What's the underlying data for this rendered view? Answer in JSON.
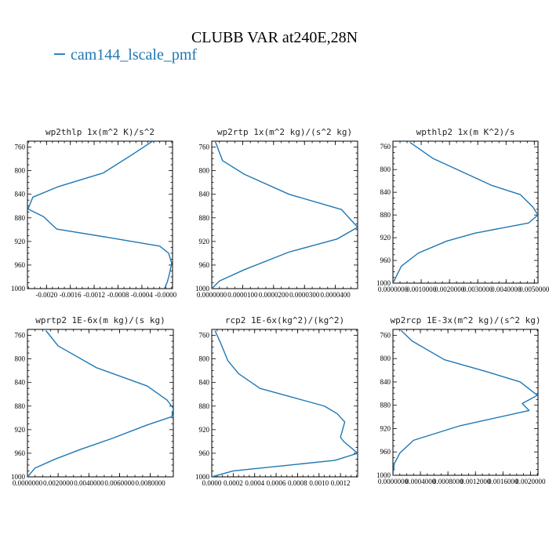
{
  "figure": {
    "title": "CLUBB VAR at240E,28N",
    "legend_label": "cam144_lscale_pmf",
    "line_color": "#1f77b4"
  },
  "chart_data": [
    {
      "type": "line",
      "title": "wp2thlp  1x(m^2 K)/s^2",
      "xlim": [
        -0.00232,
        0.000115
      ],
      "ylim": [
        1000,
        750
      ],
      "xticks": [
        -0.002,
        -0.0016,
        -0.0012,
        -0.0008,
        -0.0004,
        -0.0
      ],
      "xtick_labels": [
        "-0.0020",
        "-0.0016",
        "-0.0012",
        "-0.0008",
        "-0.0004",
        "-0.0000"
      ],
      "yticks": [
        760,
        800,
        840,
        880,
        920,
        960,
        1000
      ],
      "ytick_labels": [
        "760",
        "800",
        "840",
        "880",
        "920",
        "960",
        "1000"
      ],
      "series": [
        {
          "x": [
            -0.00022,
            -0.00055,
            -0.00105,
            -0.0018,
            -0.00223,
            -0.00231,
            -0.00205,
            -0.00183,
            -0.00098,
            -0.0001,
            5e-05,
            0.0001,
            7e-05,
            3e-05,
            -2e-05
          ],
          "y": [
            750,
            772,
            804,
            827,
            845,
            865,
            878,
            899,
            913,
            928,
            940,
            957,
            972,
            988,
            1000
          ]
        }
      ]
    },
    {
      "type": "line",
      "title": "wp2rtp  1x(m^2 kg)/(s^2 kg)",
      "xlim": [
        0.0,
        4.72e-05
      ],
      "ylim": [
        1000,
        750
      ],
      "xticks": [
        0.0,
        1e-05,
        2e-05,
        3e-05,
        4e-05
      ],
      "xtick_labels": [
        "0.0000000",
        "0.0000100",
        "0.0000200",
        "0.0000300",
        "0.0000400"
      ],
      "yticks": [
        760,
        800,
        840,
        880,
        920,
        960,
        1000
      ],
      "ytick_labels": [
        "760",
        "800",
        "840",
        "880",
        "920",
        "960",
        "1000"
      ],
      "series": [
        {
          "x": [
            1.1e-06,
            3.5e-06,
            1.05e-05,
            2.5e-05,
            4.2e-05,
            4.72e-05,
            4.05e-05,
            2.5e-05,
            1.05e-05,
            2.5e-06,
            0.0
          ],
          "y": [
            750,
            783,
            806,
            840,
            866,
            896,
            916,
            938,
            968,
            987,
            1000
          ]
        }
      ]
    },
    {
      "type": "line",
      "title": "wpthlp2  1x(m K^2)/s",
      "xlim": [
        0.0,
        0.00513
      ],
      "ylim": [
        1000,
        750
      ],
      "xticks": [
        0.0,
        0.001,
        0.002,
        0.003,
        0.004,
        0.005
      ],
      "xtick_labels": [
        "0.0000000",
        "0.0010000",
        "0.0020000",
        "0.0030000",
        "0.0040000",
        "0.0050000"
      ],
      "yticks": [
        760,
        800,
        840,
        880,
        920,
        960,
        1000
      ],
      "ytick_labels": [
        "760",
        "800",
        "840",
        "880",
        "920",
        "960",
        "1000"
      ],
      "series": [
        {
          "x": [
            0.0006,
            0.0014,
            0.0035,
            0.0045,
            0.00495,
            0.00513,
            0.0048,
            0.0029,
            0.0019,
            0.0009,
            0.0003,
            0.0
          ],
          "y": [
            752,
            780,
            828,
            844,
            866,
            880,
            894,
            912,
            926,
            947,
            970,
            1000
          ]
        }
      ]
    },
    {
      "type": "line",
      "title": "wprtp2  1E-6x(m kg)/(s kg)",
      "xlim": [
        0.0,
        0.0095
      ],
      "ylim": [
        1000,
        750
      ],
      "xticks": [
        0.0,
        0.002,
        0.004,
        0.006,
        0.008
      ],
      "xtick_labels": [
        "0.0000000",
        "0.0020000",
        "0.0040000",
        "0.0060000",
        "0.0080000"
      ],
      "yticks": [
        760,
        800,
        840,
        880,
        920,
        960,
        1000
      ],
      "ytick_labels": [
        "760",
        "800",
        "840",
        "880",
        "920",
        "960",
        "1000"
      ],
      "series": [
        {
          "x": [
            0.0012,
            0.002,
            0.0045,
            0.0078,
            0.0091,
            0.0095,
            0.0094,
            0.0078,
            0.0055,
            0.0035,
            0.0018,
            0.0005,
            0.0
          ],
          "y": [
            752,
            778,
            815,
            846,
            870,
            884,
            898,
            912,
            935,
            953,
            970,
            985,
            1000
          ]
        }
      ]
    },
    {
      "type": "line",
      "title": "rcp2  1E-6x(kg^2)/(kg^2)",
      "xlim": [
        0.0,
        0.00136
      ],
      "ylim": [
        1000,
        750
      ],
      "xticks": [
        0.0,
        0.0002,
        0.0004,
        0.0006,
        0.0008,
        0.001,
        0.0012
      ],
      "xtick_labels": [
        "0.0000",
        "0.0002",
        "0.0004",
        "0.0006",
        "0.0008",
        "0.0010",
        "0.0012"
      ],
      "yticks": [
        760,
        800,
        840,
        880,
        920,
        960,
        1000
      ],
      "ytick_labels": [
        "760",
        "800",
        "840",
        "880",
        "920",
        "960",
        "1000"
      ],
      "series": [
        {
          "x": [
            3e-05,
            8e-05,
            0.00015,
            0.00025,
            0.00045,
            0.00105,
            0.00117,
            0.00124,
            0.00122,
            0.0012,
            0.00123,
            0.00136,
            0.00115,
            0.0002,
            0.0
          ],
          "y": [
            752,
            772,
            803,
            825,
            850,
            880,
            893,
            907,
            920,
            933,
            940,
            960,
            972,
            990,
            1000
          ]
        }
      ]
    },
    {
      "type": "line",
      "title": "wp2rcp  1E-3x(m^2 kg)/(s^2 kg)",
      "xlim": [
        0.0,
        0.00211
      ],
      "ylim": [
        1000,
        750
      ],
      "xticks": [
        0.0,
        0.0004,
        0.0008,
        0.0012,
        0.0016,
        0.002
      ],
      "xtick_labels": [
        "0.0000000",
        "0.0004000",
        "0.0008000",
        "0.0012000",
        "0.0016000",
        "0.0020000"
      ],
      "yticks": [
        760,
        800,
        840,
        880,
        920,
        960,
        1000
      ],
      "ytick_labels": [
        "760",
        "800",
        "840",
        "880",
        "920",
        "960",
        "1000"
      ],
      "series": [
        {
          "x": [
            0.00012,
            0.00028,
            0.00075,
            0.00135,
            0.00185,
            0.0021,
            0.00188,
            0.00198,
            0.00098,
            0.0003,
            0.0001,
            2e-05,
            0.0
          ],
          "y": [
            752,
            770,
            802,
            822,
            840,
            863,
            877,
            889,
            915,
            940,
            962,
            980,
            1000
          ]
        }
      ]
    }
  ]
}
